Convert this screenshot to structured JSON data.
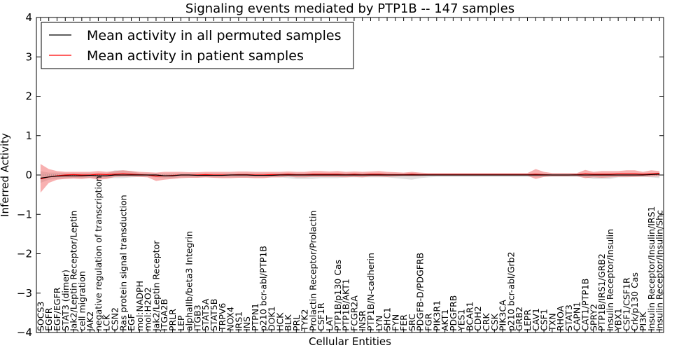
{
  "chart_data": {
    "type": "line",
    "title": "Signaling events mediated by PTP1B -- 147 samples",
    "xlabel": "Cellular Entities",
    "ylabel": "Inferred Activity",
    "ylim": [
      -4,
      4
    ],
    "yticks": [
      "−4",
      "−3",
      "−2",
      "−1",
      "0",
      "1",
      "2",
      "3",
      "4"
    ],
    "legend_position": "top-left",
    "categories": [
      "SOCS3",
      "EGFR",
      "EGF/EGFR",
      "STAT3 (dimer)",
      "Jak2/Leptin Receptor/Leptin",
      "cell migration",
      "JAK2",
      "negative regulation of transcription",
      "LCK",
      "CSN2",
      "Ras protein signal transduction",
      "EGF",
      "mol:NADPH",
      "mol:H2O2",
      "Jak2/Leptin Receptor",
      "ITGA2B",
      "PRLR",
      "LEP",
      "alphaIIb/beta3 Integrin",
      "ITGB3",
      "STAT5A",
      "STAT5B",
      "TRPV6",
      "NOX4",
      "IRS1",
      "INS",
      "PTPN1",
      "p210 bcr-abl/PTP1B",
      "DOK1",
      "HCK",
      "BLK",
      "PRL",
      "TYK2",
      "Prolactin Receptor/Prolactin",
      "CSF1R",
      "LAT",
      "PTP1B/p130 Cas",
      "PTP1B/AKT1",
      "FCGR2A",
      "INSR",
      "PTP1B/N-cadherin",
      "LYN",
      "SHC1",
      "FYN",
      "FER",
      "SRC",
      "PDGFB-D/PDGFRB",
      "FGR",
      "PIK3R1",
      "AKT1",
      "PDGFRB",
      "YES1",
      "BCAR1",
      "CDH2",
      "CRK",
      "CSK",
      "PIK3CA",
      "p210 bcr-abl/Grb2",
      "GRB2",
      "LEPR",
      "CAV1",
      "CSF1",
      "TXN",
      "RHOA",
      "STAT3",
      "CAPN1",
      "CAT1/PTP1B",
      "SPRY2",
      "PTP1B/IRS1/GRB2",
      "Insulin Receptor/Insulin",
      "YBX1",
      "CSF1/CSF1R",
      "Crk/p130 Cas",
      "PI3K",
      "Insulin Receptor/Insulin/IRS1",
      "Insulin Receptor/Insulin/Shc"
    ],
    "series": [
      {
        "name": "Mean activity in all permuted samples",
        "color": "#000000",
        "values": [
          -0.08,
          -0.05,
          -0.03,
          -0.02,
          -0.02,
          -0.02,
          -0.01,
          -0.02,
          -0.02,
          0.0,
          0.0,
          0.0,
          0.0,
          0.0,
          0.0,
          -0.02,
          -0.02,
          0.0,
          0.0,
          -0.01,
          -0.01,
          -0.01,
          -0.01,
          0.0,
          0.0,
          0.0,
          -0.01,
          -0.01,
          -0.01,
          0.0,
          0.0,
          0.0,
          0.0,
          0.0,
          0.0,
          0.0,
          0.0,
          0.0,
          0.0,
          0.0,
          0.0,
          0.0,
          0.0,
          0.0,
          0.0,
          0.0,
          0.0,
          0.0,
          0.0,
          0.0,
          0.0,
          0.0,
          0.0,
          0.0,
          0.0,
          0.0,
          0.0,
          0.0,
          0.0,
          0.0,
          0.0,
          0.0,
          0.0,
          0.0,
          0.0,
          0.0,
          0.0,
          0.0,
          0.0,
          0.0,
          0.0,
          0.0,
          0.0,
          0.0,
          0.01,
          0.02
        ],
        "band_upper": [
          0.1,
          0.06,
          0.06,
          0.05,
          0.05,
          0.05,
          0.05,
          0.04,
          0.04,
          0.12,
          0.12,
          0.1,
          0.05,
          0.04,
          0.04,
          0.04,
          0.04,
          0.04,
          0.04,
          0.04,
          0.04,
          0.04,
          0.04,
          0.04,
          0.04,
          0.04,
          0.04,
          0.04,
          0.04,
          0.04,
          0.04,
          0.04,
          0.04,
          0.04,
          0.04,
          0.04,
          0.04,
          0.04,
          0.04,
          0.04,
          0.04,
          0.04,
          0.04,
          0.04,
          0.04,
          0.04,
          0.04,
          0.04,
          0.04,
          0.04,
          0.04,
          0.04,
          0.04,
          0.04,
          0.04,
          0.04,
          0.04,
          0.04,
          0.04,
          0.04,
          0.04,
          0.04,
          0.04,
          0.04,
          0.04,
          0.04,
          0.04,
          0.04,
          0.04,
          0.04,
          0.04,
          0.04,
          0.04,
          0.04,
          0.05,
          0.06
        ],
        "band_lower": [
          -0.2,
          -0.12,
          -0.1,
          -0.09,
          -0.08,
          -0.08,
          -0.07,
          -0.08,
          -0.08,
          -0.08,
          -0.08,
          -0.06,
          -0.05,
          -0.05,
          -0.06,
          -0.08,
          -0.08,
          -0.06,
          -0.06,
          -0.06,
          -0.06,
          -0.06,
          -0.06,
          -0.06,
          -0.06,
          -0.06,
          -0.06,
          -0.06,
          -0.06,
          -0.06,
          -0.08,
          -0.1,
          -0.1,
          -0.1,
          -0.08,
          -0.08,
          -0.08,
          -0.06,
          -0.06,
          -0.06,
          -0.06,
          -0.06,
          -0.06,
          -0.08,
          -0.1,
          -0.12,
          -0.08,
          -0.06,
          -0.05,
          -0.05,
          -0.05,
          -0.05,
          -0.05,
          -0.05,
          -0.05,
          -0.05,
          -0.05,
          -0.05,
          -0.05,
          -0.05,
          -0.05,
          -0.05,
          -0.05,
          -0.05,
          -0.05,
          -0.05,
          -0.06,
          -0.1,
          -0.1,
          -0.1,
          -0.06,
          -0.06,
          -0.05,
          -0.05,
          -0.06,
          -0.08
        ]
      },
      {
        "name": "Mean activity in patient samples",
        "color": "#ff0000",
        "values": [
          -0.1,
          -0.05,
          -0.02,
          0.0,
          0.01,
          0.0,
          0.0,
          0.02,
          0.01,
          0.02,
          0.03,
          0.02,
          0.01,
          0.0,
          -0.03,
          -0.02,
          -0.01,
          0.0,
          0.0,
          0.0,
          0.01,
          0.0,
          0.0,
          0.0,
          0.01,
          0.01,
          0.0,
          0.0,
          0.01,
          0.01,
          0.02,
          0.01,
          0.01,
          0.02,
          0.02,
          0.02,
          0.02,
          0.01,
          0.02,
          0.01,
          0.02,
          0.02,
          0.01,
          0.01,
          0.01,
          0.02,
          0.01,
          0.01,
          0.01,
          0.01,
          0.01,
          0.01,
          0.01,
          0.01,
          0.01,
          0.01,
          0.01,
          0.01,
          0.01,
          0.01,
          0.02,
          0.01,
          0.0,
          0.0,
          0.0,
          0.01,
          0.03,
          0.02,
          0.02,
          0.02,
          0.03,
          0.03,
          0.03,
          0.02,
          0.03,
          0.04
        ],
        "band_upper": [
          0.28,
          0.15,
          0.1,
          0.08,
          0.08,
          0.08,
          0.08,
          0.1,
          0.08,
          0.1,
          0.12,
          0.1,
          0.08,
          0.07,
          0.06,
          0.08,
          0.08,
          0.08,
          0.07,
          0.07,
          0.08,
          0.08,
          0.08,
          0.08,
          0.09,
          0.09,
          0.08,
          0.08,
          0.08,
          0.08,
          0.09,
          0.08,
          0.08,
          0.1,
          0.1,
          0.09,
          0.1,
          0.08,
          0.09,
          0.08,
          0.09,
          0.1,
          0.08,
          0.07,
          0.06,
          0.08,
          0.06,
          0.05,
          0.05,
          0.05,
          0.05,
          0.05,
          0.05,
          0.05,
          0.05,
          0.05,
          0.05,
          0.05,
          0.05,
          0.05,
          0.15,
          0.08,
          0.05,
          0.05,
          0.05,
          0.05,
          0.13,
          0.08,
          0.1,
          0.1,
          0.1,
          0.12,
          0.12,
          0.08,
          0.12,
          0.1
        ],
        "band_lower": [
          -0.45,
          -0.2,
          -0.12,
          -0.1,
          -0.09,
          -0.1,
          -0.08,
          -0.12,
          -0.1,
          -0.05,
          -0.04,
          -0.04,
          -0.05,
          -0.06,
          -0.15,
          -0.12,
          -0.1,
          -0.08,
          -0.07,
          -0.07,
          -0.06,
          -0.07,
          -0.08,
          -0.08,
          -0.07,
          -0.07,
          -0.08,
          -0.08,
          -0.06,
          -0.06,
          -0.04,
          -0.06,
          -0.06,
          -0.05,
          -0.05,
          -0.05,
          -0.05,
          -0.06,
          -0.05,
          -0.06,
          -0.04,
          -0.04,
          -0.05,
          -0.04,
          -0.03,
          -0.03,
          -0.03,
          -0.02,
          -0.02,
          -0.02,
          -0.02,
          -0.02,
          -0.02,
          -0.02,
          -0.02,
          -0.02,
          -0.02,
          -0.02,
          -0.02,
          -0.02,
          -0.1,
          -0.05,
          -0.03,
          -0.03,
          -0.03,
          -0.03,
          -0.08,
          -0.06,
          -0.07,
          -0.06,
          -0.05,
          -0.05,
          -0.05,
          -0.04,
          -0.04,
          -0.03
        ]
      }
    ]
  }
}
